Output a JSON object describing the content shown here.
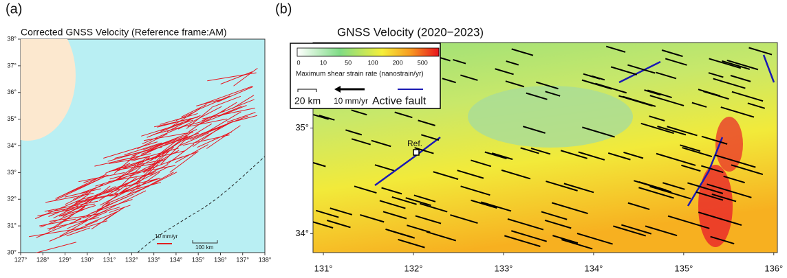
{
  "panels": [
    {
      "label": "(a)",
      "title": "Corrected GNSS Velocity (Reference frame:AM)",
      "xlim": [
        127,
        138
      ],
      "ylim": [
        30,
        38
      ],
      "xticks": [
        {
          "value": 127,
          "label": "127°"
        },
        {
          "value": 128,
          "label": "128°"
        },
        {
          "value": 129,
          "label": "129°"
        },
        {
          "value": 130,
          "label": "130°"
        },
        {
          "value": 131,
          "label": "131°"
        },
        {
          "value": 132,
          "label": "132°"
        },
        {
          "value": 133,
          "label": "133°"
        },
        {
          "value": 134,
          "label": "134°"
        },
        {
          "value": 135,
          "label": "135°"
        },
        {
          "value": 136,
          "label": "136°"
        },
        {
          "value": 137,
          "label": "137°"
        },
        {
          "value": 138,
          "label": "138°"
        }
      ],
      "yticks": [
        {
          "value": 30,
          "label": "30°"
        },
        {
          "value": 31,
          "label": "31°"
        },
        {
          "value": 32,
          "label": "32°"
        },
        {
          "value": 33,
          "label": "33°"
        },
        {
          "value": 34,
          "label": "34°"
        },
        {
          "value": 35,
          "label": "35°"
        },
        {
          "value": 36,
          "label": "36°"
        },
        {
          "value": 37,
          "label": "37°"
        },
        {
          "value": 38,
          "label": "38°"
        }
      ],
      "scale_velocity": "10 mm/yr",
      "scale_distance": "100 km"
    },
    {
      "label": "(b)",
      "title": "GNSS Velocity (2020−2023)",
      "xlim": [
        130.885,
        136.04
      ],
      "ylim": [
        33.82,
        35.81
      ],
      "xticks": [
        {
          "value": 131,
          "label": "131°"
        },
        {
          "value": 132,
          "label": "132°"
        },
        {
          "value": 133,
          "label": "133°"
        },
        {
          "value": 134,
          "label": "134°"
        },
        {
          "value": 135,
          "label": "135°"
        },
        {
          "value": 136,
          "label": "136°"
        }
      ],
      "yticks": [
        {
          "value": 34,
          "label": "34°"
        },
        {
          "value": 35,
          "label": "35°"
        }
      ],
      "colorbar": {
        "ticks": [
          0,
          10,
          50,
          100,
          200,
          500
        ],
        "label": "Maximum shear strain rate (nanostrain/yr)"
      },
      "scale_distance": "20 km",
      "scale_velocity": "10 mm/yr",
      "legend_fault": "Active fault",
      "reference": "Ref."
    }
  ]
}
